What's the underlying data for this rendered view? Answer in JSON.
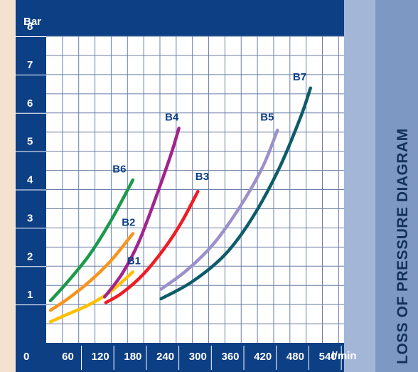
{
  "chart_data": {
    "type": "line",
    "title": "LOSS OF PRESSURE DIAGRAM",
    "xlabel": "l/min",
    "ylabel": "Bar",
    "origin_label": "0",
    "xlim": [
      20,
      570
    ],
    "ylim": [
      0,
      8
    ],
    "x_ticks": [
      60,
      120,
      180,
      240,
      300,
      360,
      420,
      480,
      540
    ],
    "y_ticks": [
      1,
      2,
      3,
      4,
      5,
      6,
      7,
      8
    ],
    "grid": true,
    "colors": {
      "frame": "#0d3f85",
      "plot_bg": "#ffffff",
      "grid": "#6b7fa6",
      "side_panel": "#7e98c4",
      "side_panel_inner": "#a4b6d8",
      "origin_label": "#1ea7e6"
    },
    "series": [
      {
        "name": "B1",
        "color": "#ffc000",
        "points": [
          [
            28,
            0.55
          ],
          [
            60,
            0.75
          ],
          [
            100,
            1.0
          ],
          [
            140,
            1.35
          ],
          [
            180,
            1.85
          ]
        ],
        "label_at": [
          182,
          2.05
        ]
      },
      {
        "name": "B2",
        "color": "#f7941d",
        "points": [
          [
            28,
            0.85
          ],
          [
            60,
            1.15
          ],
          [
            100,
            1.6
          ],
          [
            140,
            2.15
          ],
          [
            180,
            2.85
          ]
        ],
        "label_at": [
          172,
          3.05
        ]
      },
      {
        "name": "B6",
        "color": "#1a9a4a",
        "points": [
          [
            28,
            1.1
          ],
          [
            60,
            1.6
          ],
          [
            100,
            2.3
          ],
          [
            140,
            3.2
          ],
          [
            180,
            4.25
          ]
        ],
        "label_at": [
          155,
          4.45
        ]
      },
      {
        "name": "B3",
        "color": "#ee1c24",
        "points": [
          [
            130,
            1.05
          ],
          [
            160,
            1.3
          ],
          [
            200,
            1.8
          ],
          [
            240,
            2.5
          ],
          [
            270,
            3.15
          ],
          [
            300,
            3.95
          ]
        ],
        "label_at": [
          308,
          4.25
        ]
      },
      {
        "name": "B4",
        "color": "#a3238e",
        "points": [
          [
            128,
            1.2
          ],
          [
            160,
            1.8
          ],
          [
            190,
            2.6
          ],
          [
            220,
            3.7
          ],
          [
            250,
            4.9
          ],
          [
            265,
            5.6
          ]
        ],
        "label_at": [
          252,
          5.8
        ]
      },
      {
        "name": "B5",
        "color": "#9b90cc",
        "points": [
          [
            232,
            1.4
          ],
          [
            280,
            1.9
          ],
          [
            330,
            2.6
          ],
          [
            380,
            3.6
          ],
          [
            420,
            4.6
          ],
          [
            447,
            5.55
          ]
        ],
        "label_at": [
          428,
          5.8
        ]
      },
      {
        "name": "B7",
        "color": "#0e5c6a",
        "points": [
          [
            232,
            1.15
          ],
          [
            290,
            1.6
          ],
          [
            350,
            2.3
          ],
          [
            400,
            3.25
          ],
          [
            450,
            4.55
          ],
          [
            490,
            5.9
          ],
          [
            508,
            6.65
          ]
        ],
        "label_at": [
          488,
          6.85
        ]
      }
    ]
  }
}
